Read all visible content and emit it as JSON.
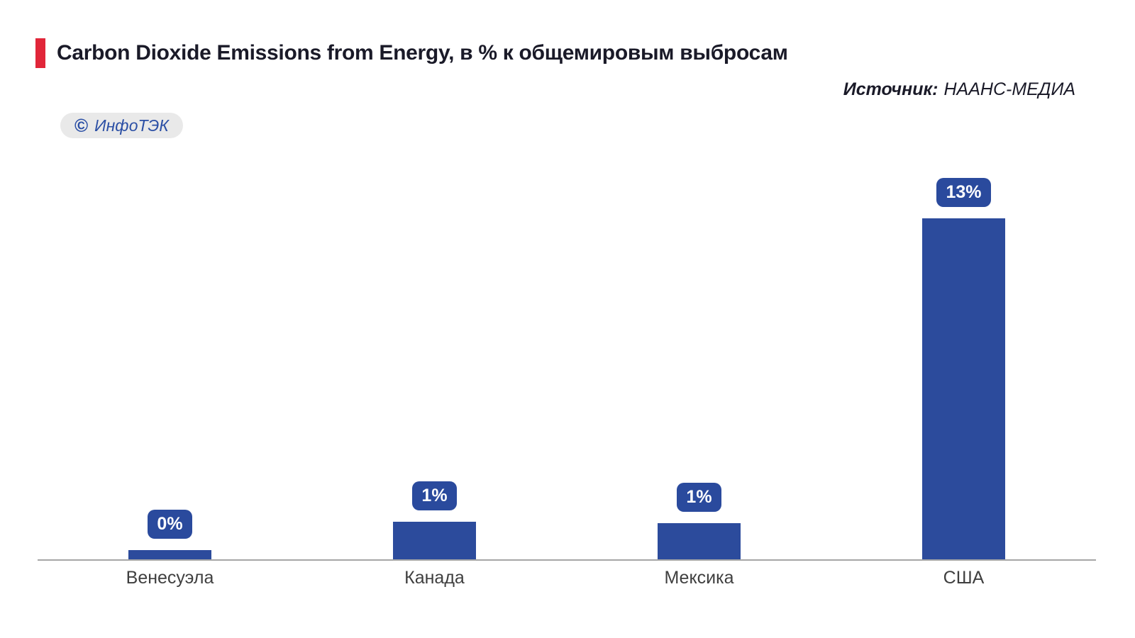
{
  "header": {
    "title": "Carbon Dioxide Emissions from Energy, в % к общемировым выбросам",
    "accent_color": "#e12639"
  },
  "source": {
    "label": "Источник:",
    "value": "НААНС-МЕДИА"
  },
  "watermark": {
    "copyright_symbol": "©",
    "text": "ИнфоТЭК"
  },
  "chart_data": {
    "type": "bar",
    "title": "Carbon Dioxide Emissions from Energy, в % к общемировым выбросам",
    "categories": [
      "Венесуэла",
      "Канада",
      "Мексика",
      "США"
    ],
    "values": [
      0.35,
      1.43,
      1.38,
      13
    ],
    "labels": [
      "0%",
      "1%",
      "1%",
      "13%"
    ],
    "ylim": [
      0,
      14
    ],
    "grid": false,
    "legend": false,
    "bar_color": "#2c4b9c",
    "badge_color": "#2a4a9d",
    "badge_text_color": "#ffffff",
    "axis_color": "#a6a6a6",
    "tick_label_color": "#3f3f3f"
  }
}
